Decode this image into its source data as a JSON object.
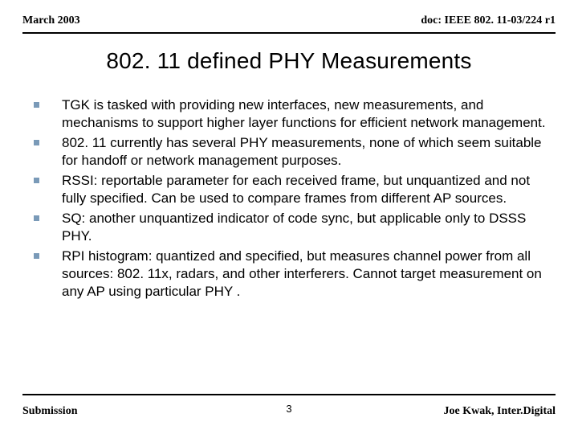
{
  "header": {
    "left": "March 2003",
    "right": "doc: IEEE 802. 11-03/224 r1"
  },
  "title": "802. 11 defined PHY Measurements",
  "bullets": [
    "TGK is tasked with providing new interfaces, new measurements, and mechanisms to support higher layer functions for efficient network management.",
    "802. 11 currently has several PHY measurements, none of which seem suitable for handoff  or network management purposes.",
    "RSSI: reportable parameter for each received frame, but unquantized and not fully  specified. Can be used to compare frames from different AP sources.",
    "SQ:  another unquantized indicator of code sync, but applicable only to DSSS PHY.",
    "RPI histogram:  quantized and specified, but measures channel power from all sources: 802. 11x, radars, and other interferers. Cannot target measurement on any AP using particular PHY ."
  ],
  "footer": {
    "left": "Submission",
    "page": "3",
    "right": "Joe Kwak, Inter.Digital"
  },
  "colors": {
    "bullet_marker": "#7a9ab8",
    "rule": "#000000",
    "text": "#000000",
    "background": "#ffffff"
  },
  "typography": {
    "header_font": "Times New Roman",
    "title_font": "Arial",
    "body_font": "Arial",
    "title_fontsize": 28,
    "body_fontsize": 17,
    "header_fontsize": 14
  }
}
